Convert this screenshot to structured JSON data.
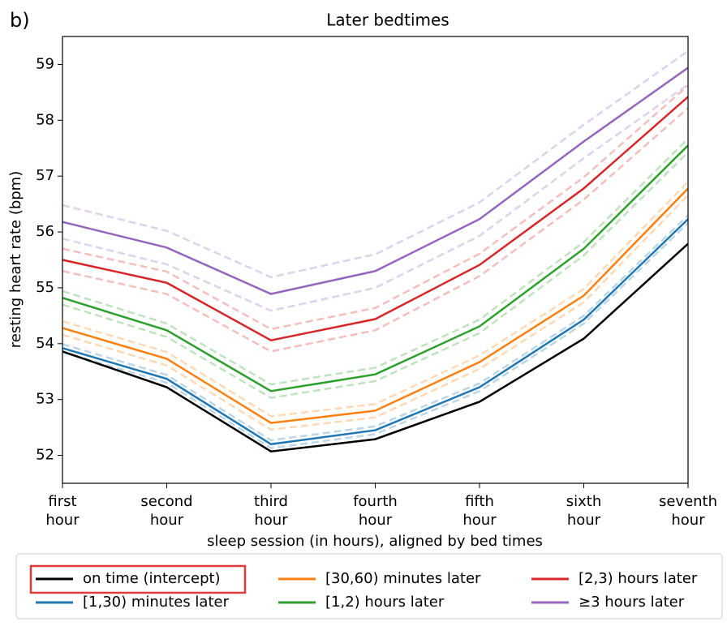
{
  "chart_data": {
    "type": "line",
    "panel_label": "b)",
    "title": "Later bedtimes",
    "x_label": "sleep session (in hours), aligned by bed times",
    "y_label": "resting heart rate (bpm)",
    "categories": [
      "first hour",
      "second hour",
      "third hour",
      "fourth hour",
      "fifth hour",
      "sixth hour",
      "seventh hour"
    ],
    "ylim": [
      51.5,
      59.5
    ],
    "yticks": [
      52,
      53,
      54,
      55,
      56,
      57,
      58,
      59
    ],
    "grid": false,
    "legend": "bottom",
    "series": [
      {
        "name": "on time (intercept)",
        "color": "#000000",
        "values": [
          53.86,
          53.22,
          52.07,
          52.29,
          52.96,
          54.09,
          55.79
        ]
      },
      {
        "name": "[1,30) minutes later",
        "color": "#1f77b4",
        "values": [
          53.92,
          53.37,
          52.2,
          52.45,
          53.22,
          54.43,
          56.23
        ],
        "ci_lower": [
          53.85,
          53.3,
          52.13,
          52.38,
          53.15,
          54.36,
          56.16
        ],
        "ci_upper": [
          53.99,
          53.44,
          52.27,
          52.52,
          53.29,
          54.5,
          56.3
        ]
      },
      {
        "name": "[30,60) minutes later",
        "color": "#ff7f0e",
        "values": [
          54.28,
          53.73,
          52.58,
          52.8,
          53.67,
          54.86,
          56.78
        ],
        "ci_lower": [
          54.16,
          53.61,
          52.46,
          52.68,
          53.55,
          54.74,
          56.66
        ],
        "ci_upper": [
          54.4,
          53.85,
          52.7,
          52.92,
          53.79,
          54.98,
          56.9
        ]
      },
      {
        "name": "[1,2) hours later",
        "color": "#2ca02c",
        "values": [
          54.82,
          54.24,
          53.15,
          53.45,
          54.31,
          55.7,
          57.55
        ],
        "ci_lower": [
          54.7,
          54.12,
          53.03,
          53.33,
          54.19,
          55.58,
          57.43
        ],
        "ci_upper": [
          54.94,
          54.36,
          53.27,
          53.57,
          54.43,
          55.82,
          57.67
        ]
      },
      {
        "name": "[2,3) hours later",
        "color": "#d62728",
        "values": [
          55.5,
          55.09,
          54.06,
          54.44,
          55.41,
          56.78,
          58.42
        ],
        "ci_lower": [
          55.3,
          54.89,
          53.86,
          54.24,
          55.21,
          56.58,
          58.22
        ],
        "ci_upper": [
          55.7,
          55.29,
          54.26,
          54.64,
          55.61,
          56.98,
          58.62
        ]
      },
      {
        "name": "≥3 hours later",
        "color": "#9467bd",
        "values": [
          56.18,
          55.72,
          54.89,
          55.3,
          56.23,
          57.62,
          58.94
        ],
        "ci_lower": [
          55.88,
          55.42,
          54.59,
          55.0,
          55.93,
          57.32,
          58.64
        ],
        "ci_upper": [
          56.48,
          56.02,
          55.19,
          55.6,
          56.53,
          57.92,
          59.24
        ]
      }
    ]
  }
}
